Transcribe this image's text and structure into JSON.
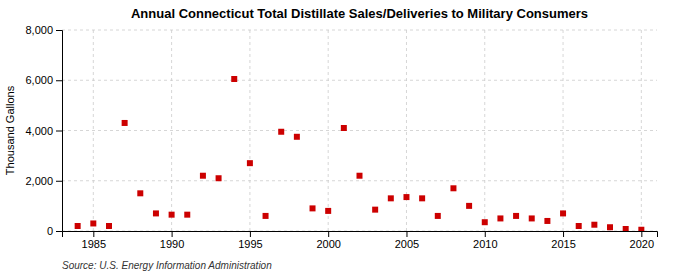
{
  "chart_data": {
    "type": "scatter",
    "title": "Annual Connecticut Total Distillate Sales/Deliveries to Military Consumers",
    "ylabel": "Thousand Gallons",
    "source": "Source: U.S. Energy Information Administration",
    "color": "#cc0000",
    "marker": "square",
    "grid": true,
    "xlim": [
      1983,
      2021
    ],
    "ylim": [
      0,
      8000
    ],
    "xticks": [
      1985,
      1990,
      1995,
      2000,
      2005,
      2010,
      2015,
      2020
    ],
    "yticks": [
      0,
      {
        "value": 2000,
        "label": "2,000"
      },
      {
        "value": 4000,
        "label": "4,000"
      },
      {
        "value": 6000,
        "label": "6,000"
      },
      {
        "value": 8000,
        "label": "8,000"
      }
    ],
    "x": [
      1984,
      1985,
      1986,
      1987,
      1988,
      1989,
      1990,
      1991,
      1992,
      1993,
      1994,
      1995,
      1996,
      1997,
      1998,
      1999,
      2000,
      2001,
      2002,
      2003,
      2004,
      2005,
      2006,
      2007,
      2008,
      2009,
      2010,
      2011,
      2012,
      2013,
      2014,
      2015,
      2016,
      2017,
      2018,
      2019,
      2020
    ],
    "values": [
      200,
      300,
      200,
      4300,
      1500,
      700,
      650,
      650,
      2200,
      2100,
      6050,
      2700,
      600,
      3950,
      3750,
      900,
      800,
      4100,
      2200,
      850,
      1300,
      1350,
      1300,
      600,
      1700,
      1000,
      350,
      500,
      600,
      500,
      400,
      700,
      200,
      250,
      150,
      80,
      50
    ]
  }
}
